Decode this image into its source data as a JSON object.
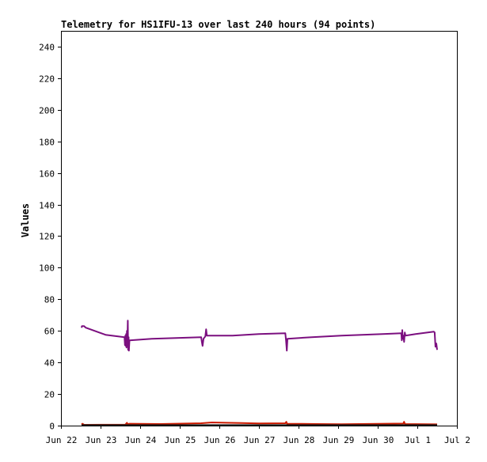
{
  "chart_data": {
    "type": "line",
    "title": "Telemetry for HS1IFU-13 over last 240 hours (94 points)",
    "xlabel": "",
    "ylabel": "Values",
    "ylim": [
      0,
      250
    ],
    "xlim": [
      0,
      240
    ],
    "x_unit": "hours since Jun 22 00:00",
    "grid": false,
    "legend": "none",
    "x_ticks": [
      {
        "x": 0,
        "label": "Jun 22"
      },
      {
        "x": 24,
        "label": "Jun 23"
      },
      {
        "x": 48,
        "label": "Jun 24"
      },
      {
        "x": 72,
        "label": "Jun 25"
      },
      {
        "x": 96,
        "label": "Jun 26"
      },
      {
        "x": 120,
        "label": "Jun 27"
      },
      {
        "x": 144,
        "label": "Jun 28"
      },
      {
        "x": 168,
        "label": "Jun 29"
      },
      {
        "x": 192,
        "label": "Jun 30"
      },
      {
        "x": 216,
        "label": "Jul 1"
      },
      {
        "x": 240,
        "label": "Jul 2"
      }
    ],
    "y_ticks": [
      0,
      20,
      40,
      60,
      80,
      100,
      120,
      140,
      160,
      180,
      200,
      220,
      240
    ],
    "series": [
      {
        "color": "#7b0f7f",
        "points": [
          [
            12.5,
            62
          ],
          [
            12.7,
            63
          ],
          [
            14.0,
            63
          ],
          [
            15.0,
            62
          ],
          [
            27.0,
            57.5
          ],
          [
            38.5,
            56
          ],
          [
            38.8,
            51
          ],
          [
            39.0,
            57
          ],
          [
            39.2,
            50.5
          ],
          [
            39.5,
            58
          ],
          [
            39.7,
            49.5
          ],
          [
            40.0,
            60
          ],
          [
            40.2,
            52
          ],
          [
            40.5,
            66.5
          ],
          [
            40.7,
            48
          ],
          [
            41.0,
            56
          ],
          [
            41.2,
            47.5
          ],
          [
            41.5,
            54
          ],
          [
            55.0,
            55
          ],
          [
            70.0,
            55.5
          ],
          [
            85.0,
            56
          ],
          [
            85.4,
            53
          ],
          [
            85.8,
            50.5
          ],
          [
            86.4,
            55
          ],
          [
            87.5,
            56.5
          ],
          [
            88.0,
            61
          ],
          [
            88.4,
            57
          ],
          [
            104.0,
            57
          ],
          [
            120.0,
            58
          ],
          [
            136.0,
            58.5
          ],
          [
            136.4,
            54
          ],
          [
            136.9,
            47.5
          ],
          [
            137.3,
            55
          ],
          [
            152.0,
            56
          ],
          [
            170.0,
            57
          ],
          [
            195.0,
            58
          ],
          [
            206.3,
            58.5
          ],
          [
            206.6,
            54
          ],
          [
            206.9,
            60.5
          ],
          [
            207.2,
            55
          ],
          [
            207.6,
            57
          ],
          [
            208.0,
            53
          ],
          [
            208.4,
            59
          ],
          [
            208.8,
            57
          ],
          [
            215.0,
            58
          ],
          [
            226.0,
            59.5
          ],
          [
            226.5,
            59
          ],
          [
            227.0,
            50
          ],
          [
            227.5,
            52
          ],
          [
            228.0,
            48
          ]
        ]
      },
      {
        "color": "#cc1b00",
        "points": [
          [
            12.5,
            0.6
          ],
          [
            13.0,
            1.2
          ],
          [
            14.0,
            0.5
          ],
          [
            39.0,
            0.6
          ],
          [
            40.0,
            1.8
          ],
          [
            40.5,
            0.8
          ],
          [
            41.5,
            1.2
          ],
          [
            60.0,
            1.0
          ],
          [
            85.0,
            1.5
          ],
          [
            91.5,
            2.0
          ],
          [
            100.0,
            1.8
          ],
          [
            110.0,
            1.6
          ],
          [
            120.0,
            1.4
          ],
          [
            136.0,
            1.5
          ],
          [
            136.6,
            2.4
          ],
          [
            137.0,
            1.2
          ],
          [
            155.0,
            1.0
          ],
          [
            170.0,
            0.9
          ],
          [
            207.5,
            1.3
          ],
          [
            208.0,
            2.4
          ],
          [
            208.5,
            1.0
          ],
          [
            228.0,
            0.8
          ]
        ]
      },
      {
        "color": "#1a1a1a",
        "points": [
          [
            12.5,
            0.3
          ],
          [
            228.0,
            0.3
          ]
        ]
      }
    ]
  }
}
